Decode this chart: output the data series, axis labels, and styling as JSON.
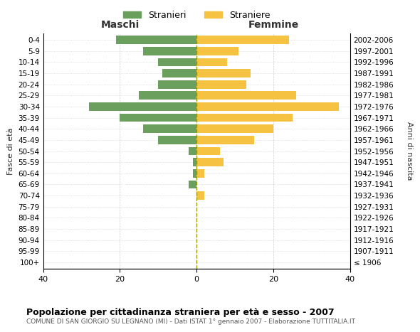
{
  "age_groups": [
    "100+",
    "95-99",
    "90-94",
    "85-89",
    "80-84",
    "75-79",
    "70-74",
    "65-69",
    "60-64",
    "55-59",
    "50-54",
    "45-49",
    "40-44",
    "35-39",
    "30-34",
    "25-29",
    "20-24",
    "15-19",
    "10-14",
    "5-9",
    "0-4"
  ],
  "birth_years": [
    "≤ 1906",
    "1907-1911",
    "1912-1916",
    "1917-1921",
    "1922-1926",
    "1927-1931",
    "1932-1936",
    "1937-1941",
    "1942-1946",
    "1947-1951",
    "1952-1956",
    "1957-1961",
    "1962-1966",
    "1967-1971",
    "1972-1976",
    "1977-1981",
    "1982-1986",
    "1987-1991",
    "1992-1996",
    "1997-2001",
    "2002-2006"
  ],
  "maschi": [
    0,
    0,
    0,
    0,
    0,
    0,
    0,
    2,
    1,
    1,
    2,
    10,
    14,
    20,
    28,
    15,
    10,
    9,
    10,
    14,
    21
  ],
  "femmine": [
    0,
    0,
    0,
    0,
    0,
    0,
    2,
    0,
    2,
    7,
    6,
    15,
    20,
    25,
    37,
    26,
    13,
    14,
    8,
    11,
    24
  ],
  "color_maschi": "#6a9f5e",
  "color_femmine": "#f5c242",
  "title": "Popolazione per cittadinanza straniera per età e sesso - 2007",
  "subtitle": "COMUNE DI SAN GIORGIO SU LEGNANO (MI) - Dati ISTAT 1° gennaio 2007 - Elaborazione TUTTITALIA.IT",
  "xlabel_left": "Maschi",
  "xlabel_right": "Femmine",
  "ylabel_left": "Fasce di età",
  "ylabel_right": "Anni di nascita",
  "legend_stranieri": "Stranieri",
  "legend_straniere": "Straniere",
  "xlim": 40,
  "background_color": "#ffffff",
  "grid_color": "#cccccc"
}
